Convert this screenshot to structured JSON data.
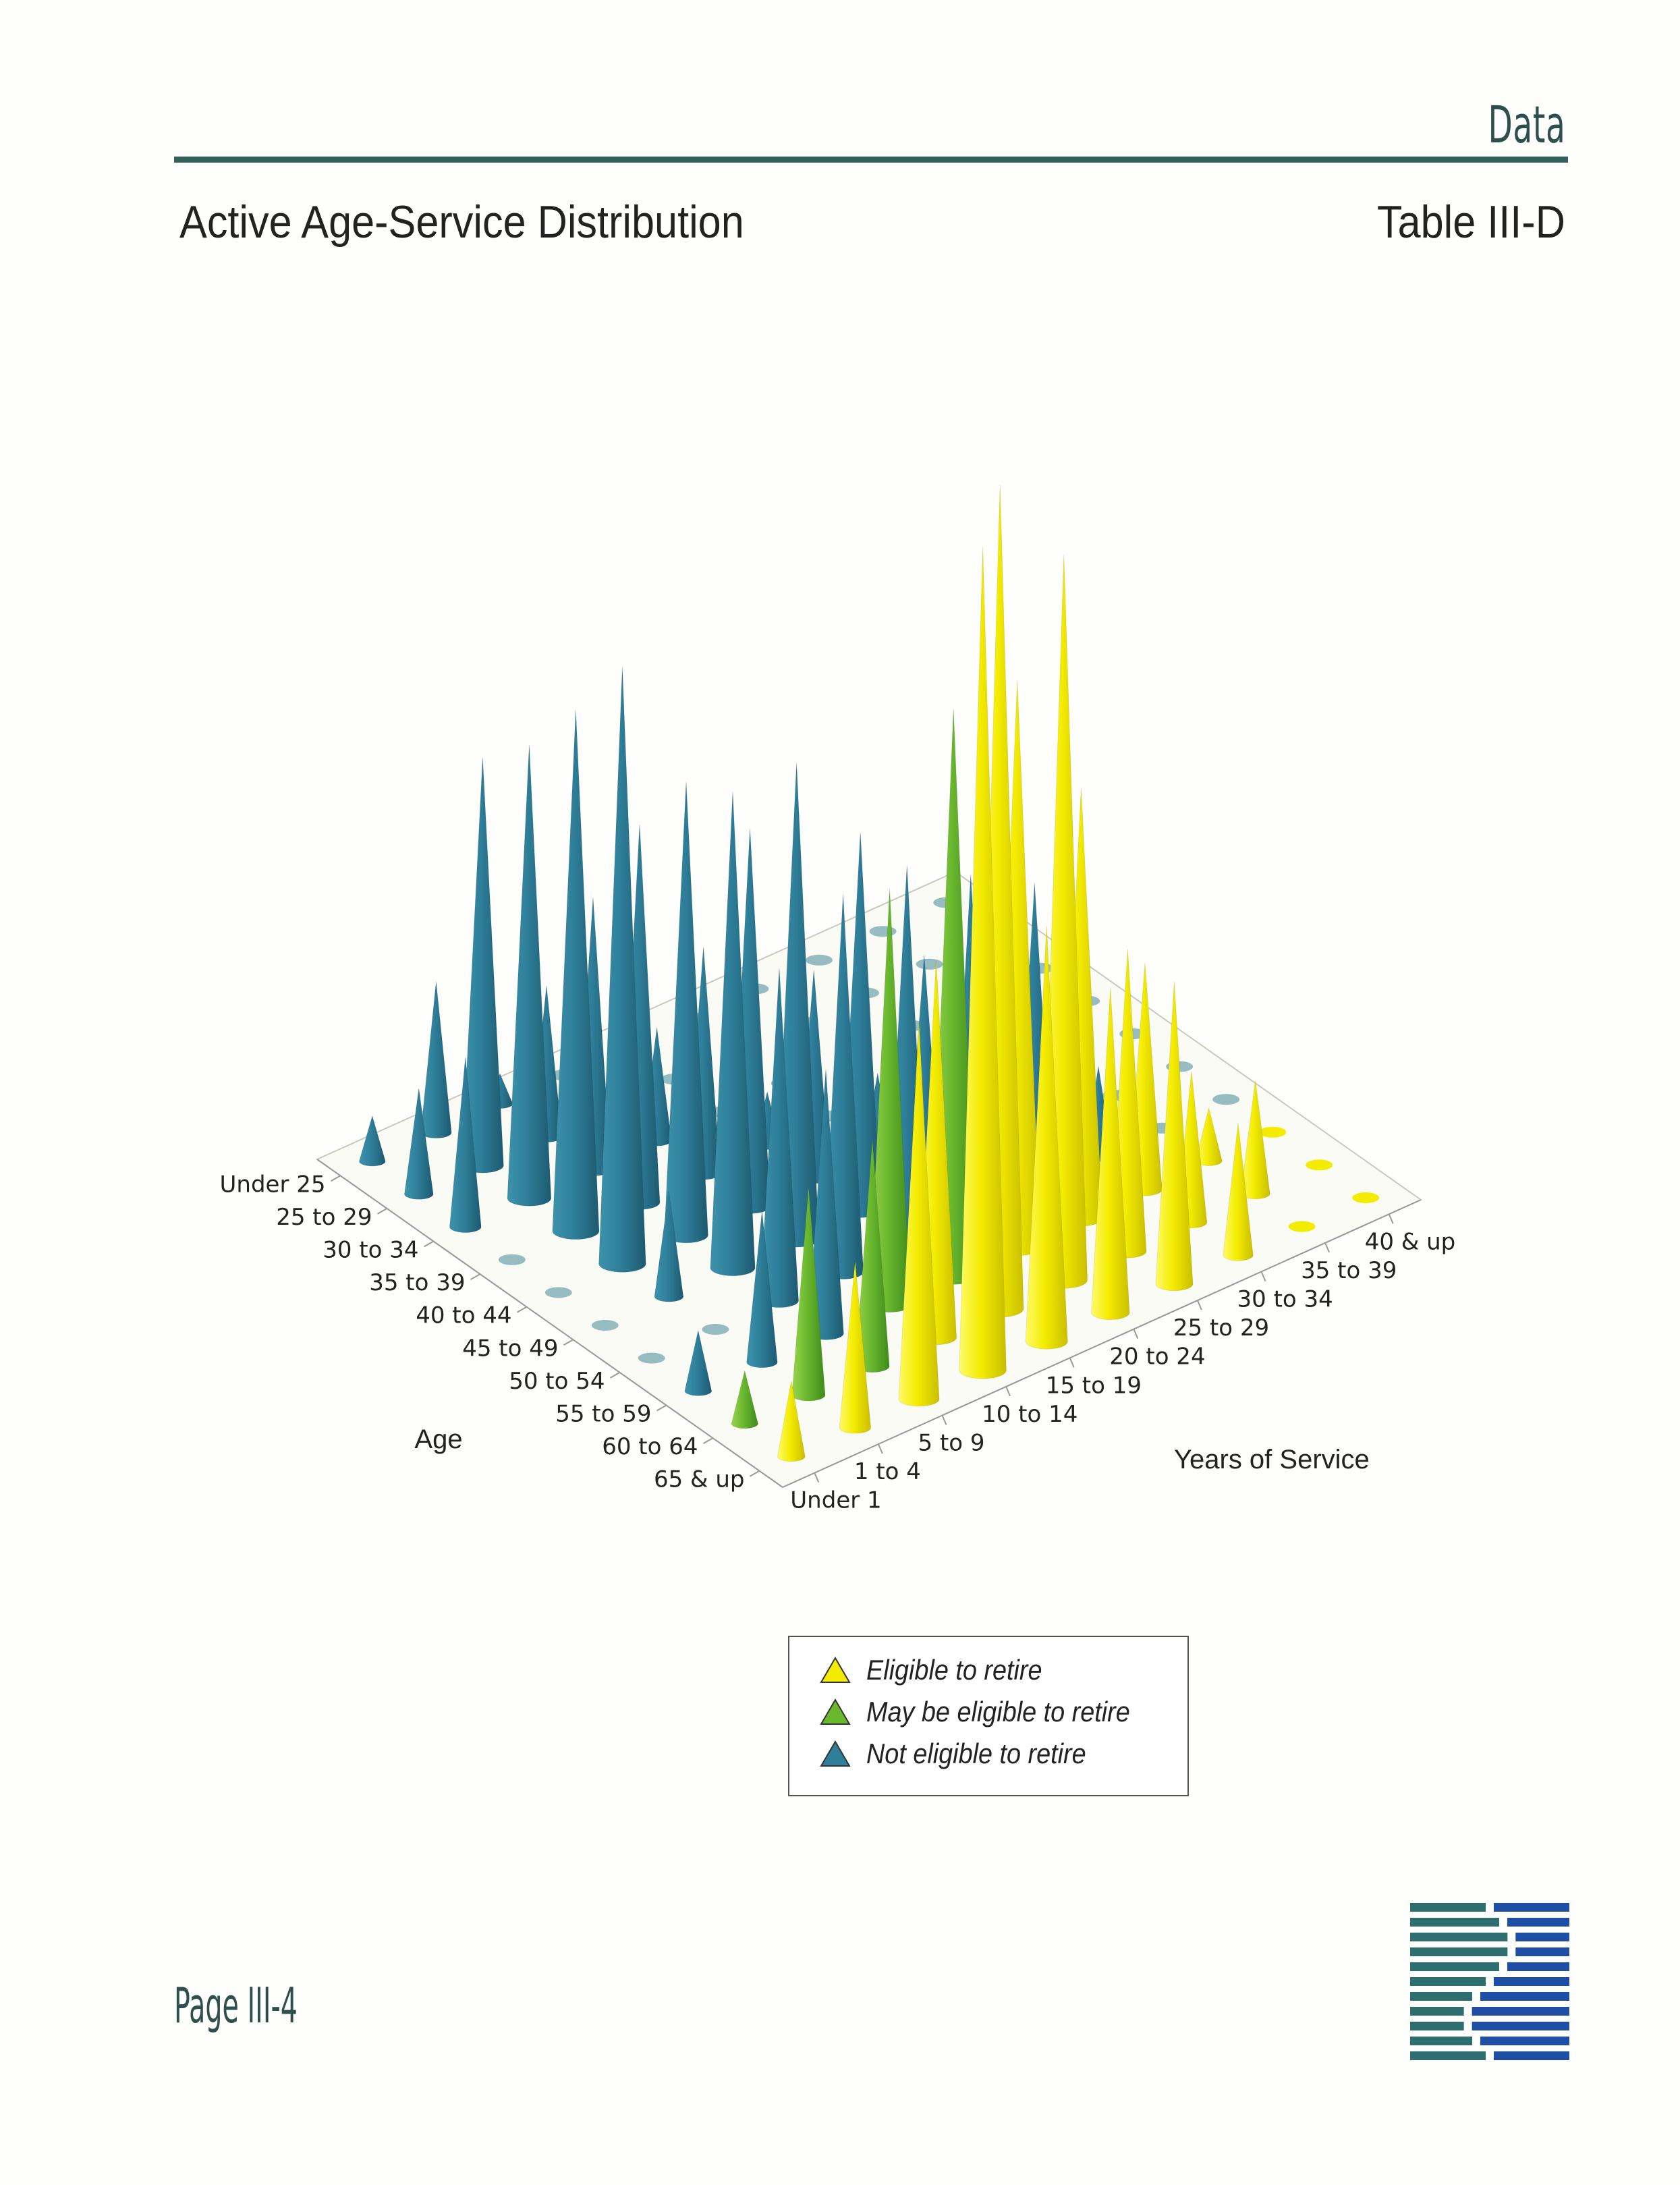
{
  "header": {
    "section": "Data",
    "title": "Active Age-Service Distribution",
    "table_id": "Table III-D"
  },
  "footer": {
    "page": "Page III-4"
  },
  "colors": {
    "eligible": "#f4ec00",
    "may_be_eligible": "#6ab82e",
    "not_eligible": "#2f7f9a",
    "not_eligible_highlight": "#1e6fa8",
    "light_highlight": "#8fd2e0",
    "rule": "#355f5a",
    "logo_teal": "#2f6e6e",
    "logo_blue": "#1e4fa5"
  },
  "legend": {
    "items": [
      {
        "label": "Eligible to retire",
        "color": "#f4ec00"
      },
      {
        "label": "May be eligible to retire",
        "color": "#6ab82e"
      },
      {
        "label": "Not eligible to retire",
        "color": "#2f7f9a"
      }
    ]
  },
  "chart_data": {
    "type": "3d-cone",
    "title": "",
    "xlabel": "Age",
    "ylabel": "Years of Service",
    "age_groups": [
      "Under 25",
      "25 to 29",
      "30 to 34",
      "35 to 39",
      "40 to 44",
      "45 to 49",
      "50 to 54",
      "55 to 59",
      "60 to 64",
      "65 & up"
    ],
    "service_groups": [
      "Under 1",
      "1 to 4",
      "5 to 9",
      "10 to 14",
      "15 to 19",
      "20 to 24",
      "25 to 29",
      "30 to 34",
      "35 to 39",
      "40 & up"
    ],
    "values": [
      [
        12,
        40,
        8,
        0,
        0,
        0,
        0,
        0,
        0,
        0
      ],
      [
        28,
        108,
        40,
        0,
        0,
        0,
        0,
        0,
        0,
        0
      ],
      [
        45,
        120,
        72,
        30,
        0,
        0,
        0,
        0,
        0,
        0
      ],
      [
        0,
        138,
        100,
        60,
        14,
        0,
        0,
        0,
        0,
        0
      ],
      [
        0,
        158,
        120,
        100,
        55,
        20,
        0,
        0,
        0,
        0
      ],
      [
        0,
        28,
        126,
        126,
        100,
        60,
        14,
        0,
        0,
        0
      ],
      [
        0,
        0,
        88,
        100,
        100,
        90,
        80,
        24,
        0,
        0
      ],
      [
        16,
        40,
        70,
        110,
        150,
        150,
        114,
        60,
        14,
        0
      ],
      [
        14,
        55,
        60,
        100,
        218,
        192,
        80,
        40,
        30,
        0
      ],
      [
        20,
        44,
        100,
        218,
        110,
        86,
        80,
        35,
        0,
        0
      ]
    ],
    "eligibility": [
      [
        "N",
        "N",
        "N",
        "N",
        "N",
        "N",
        "N",
        "N",
        "N",
        "N"
      ],
      [
        "N",
        "N",
        "N",
        "N",
        "N",
        "N",
        "N",
        "N",
        "N",
        "N"
      ],
      [
        "N",
        "N",
        "N",
        "N",
        "N",
        "N",
        "N",
        "N",
        "N",
        "N"
      ],
      [
        "N",
        "N",
        "N",
        "N",
        "N",
        "N",
        "N",
        "N",
        "N",
        "N"
      ],
      [
        "N",
        "N",
        "N",
        "N",
        "N",
        "N",
        "N",
        "N",
        "N",
        "N"
      ],
      [
        "N",
        "N",
        "N",
        "N",
        "N",
        "N",
        "N",
        "N",
        "N",
        "N"
      ],
      [
        "N",
        "N",
        "N",
        "N",
        "N",
        "N",
        "N",
        "N",
        "N",
        "N"
      ],
      [
        "N",
        "N",
        "N",
        "M",
        "M",
        "E",
        "E",
        "E",
        "E",
        "E"
      ],
      [
        "M",
        "M",
        "M",
        "E",
        "E",
        "E",
        "E",
        "E",
        "E",
        "E"
      ],
      [
        "E",
        "E",
        "E",
        "E",
        "E",
        "E",
        "E",
        "E",
        "E",
        "E"
      ]
    ],
    "legend_position": "bottom-center",
    "grid": false
  }
}
